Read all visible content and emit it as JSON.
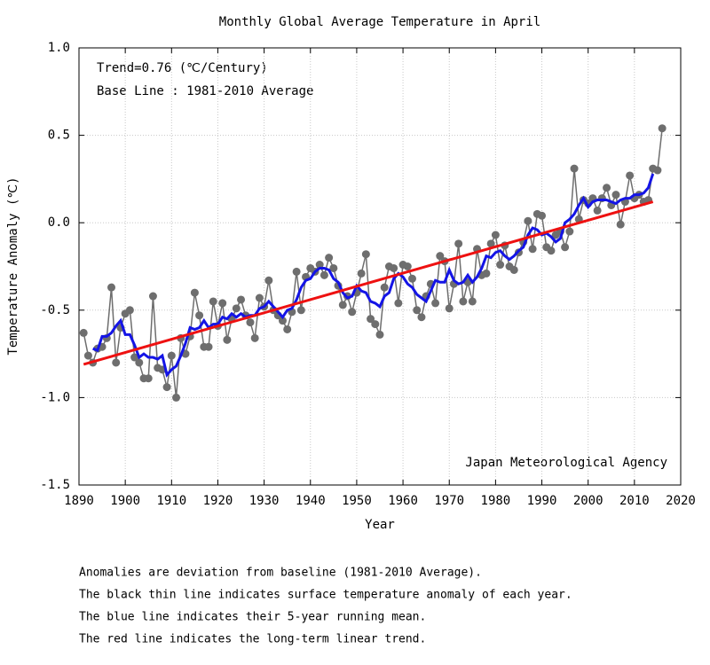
{
  "chart_data": {
    "type": "line",
    "title": "Monthly Global Average Temperature in April",
    "x_label": "Year",
    "y_label": "Temperature Anomaly (℃)",
    "annotations": [
      "Trend=0.76 (℃/Century)",
      "Base Line : 1981-2010 Average"
    ],
    "source": "Japan Meteorological Agency",
    "notes": [
      "Anomalies are deviation from baseline (1981-2010 Average).",
      "The black thin line indicates surface temperature anomaly of each year.",
      "The blue line indicates their 5-year running mean.",
      "The red line indicates the long-term linear trend."
    ],
    "xlim": [
      1890,
      2020
    ],
    "xticks": [
      1890,
      1900,
      1910,
      1920,
      1930,
      1940,
      1950,
      1960,
      1970,
      1980,
      1990,
      2000,
      2010,
      2020
    ],
    "ylim": [
      -1.5,
      1.0
    ],
    "yticks": [
      {
        "value": -1.5,
        "label": "-1.5"
      },
      {
        "value": -1.0,
        "label": "-1.0"
      },
      {
        "value": -0.5,
        "label": "-0.5"
      },
      {
        "value": 0,
        "label": "0.0"
      },
      {
        "value": 0.5,
        "label": "0.5"
      },
      {
        "value": 1.0,
        "label": "1.0"
      }
    ],
    "grid": true,
    "x": [
      1891,
      1892,
      1893,
      1894,
      1895,
      1896,
      1897,
      1898,
      1899,
      1900,
      1901,
      1902,
      1903,
      1904,
      1905,
      1906,
      1907,
      1908,
      1909,
      1910,
      1911,
      1912,
      1913,
      1914,
      1915,
      1916,
      1917,
      1918,
      1919,
      1920,
      1921,
      1922,
      1923,
      1924,
      1925,
      1926,
      1927,
      1928,
      1929,
      1930,
      1931,
      1932,
      1933,
      1934,
      1935,
      1936,
      1937,
      1938,
      1939,
      1940,
      1941,
      1942,
      1943,
      1944,
      1945,
      1946,
      1947,
      1948,
      1949,
      1950,
      1951,
      1952,
      1953,
      1954,
      1955,
      1956,
      1957,
      1958,
      1959,
      1960,
      1961,
      1962,
      1963,
      1964,
      1965,
      1966,
      1967,
      1968,
      1969,
      1970,
      1971,
      1972,
      1973,
      1974,
      1975,
      1976,
      1977,
      1978,
      1979,
      1980,
      1981,
      1982,
      1983,
      1984,
      1985,
      1986,
      1987,
      1988,
      1989,
      1990,
      1991,
      1992,
      1993,
      1994,
      1995,
      1996,
      1997,
      1998,
      1999,
      2000,
      2001,
      2002,
      2003,
      2004,
      2005,
      2006,
      2007,
      2008,
      2009,
      2010,
      2011,
      2012,
      2013,
      2014,
      2015,
      2016
    ],
    "series": [
      {
        "color": "#6e6e6e",
        "markers": true,
        "values": [
          -0.63,
          -0.76,
          -0.8,
          -0.72,
          -0.71,
          -0.66,
          -0.37,
          -0.8,
          -0.6,
          -0.52,
          -0.5,
          -0.77,
          -0.8,
          -0.89,
          -0.89,
          -0.42,
          -0.83,
          -0.84,
          -0.94,
          -0.76,
          -1.0,
          -0.66,
          -0.75,
          -0.65,
          -0.4,
          -0.53,
          -0.71,
          -0.71,
          -0.45,
          -0.59,
          -0.46,
          -0.67,
          -0.55,
          -0.49,
          -0.44,
          -0.53,
          -0.57,
          -0.66,
          -0.43,
          -0.48,
          -0.33,
          -0.5,
          -0.53,
          -0.56,
          -0.61,
          -0.51,
          -0.28,
          -0.5,
          -0.31,
          -0.26,
          -0.28,
          -0.24,
          -0.3,
          -0.2,
          -0.26,
          -0.36,
          -0.47,
          -0.42,
          -0.51,
          -0.4,
          -0.29,
          -0.18,
          -0.55,
          -0.58,
          -0.64,
          -0.37,
          -0.25,
          -0.26,
          -0.46,
          -0.24,
          -0.25,
          -0.32,
          -0.5,
          -0.54,
          -0.42,
          -0.35,
          -0.46,
          -0.19,
          -0.22,
          -0.49,
          -0.35,
          -0.12,
          -0.45,
          -0.34,
          -0.45,
          -0.15,
          -0.3,
          -0.29,
          -0.12,
          -0.07,
          -0.24,
          -0.13,
          -0.25,
          -0.27,
          -0.17,
          -0.11,
          0.01,
          -0.15,
          0.05,
          0.04,
          -0.14,
          -0.16,
          -0.07,
          -0.05,
          -0.14,
          -0.05,
          0.31,
          0.02,
          0.13,
          0.11,
          0.14,
          0.07,
          0.14,
          0.2,
          0.1,
          0.16,
          -0.01,
          0.12,
          0.27,
          0.14,
          0.16,
          0.12,
          0.13,
          0.31,
          0.3,
          0.54
        ]
      },
      {
        "color": "#1414e6",
        "markers": false,
        "values": [
          null,
          null,
          -0.72,
          -0.73,
          -0.65,
          -0.65,
          -0.63,
          -0.59,
          -0.56,
          -0.64,
          -0.64,
          -0.7,
          -0.77,
          -0.75,
          -0.77,
          -0.77,
          -0.78,
          -0.76,
          -0.87,
          -0.84,
          -0.82,
          -0.76,
          -0.69,
          -0.6,
          -0.61,
          -0.6,
          -0.56,
          -0.6,
          -0.58,
          -0.58,
          -0.54,
          -0.55,
          -0.52,
          -0.54,
          -0.52,
          -0.54,
          -0.53,
          -0.53,
          -0.49,
          -0.48,
          -0.45,
          -0.48,
          -0.51,
          -0.54,
          -0.5,
          -0.49,
          -0.44,
          -0.37,
          -0.33,
          -0.32,
          -0.28,
          -0.26,
          -0.26,
          -0.27,
          -0.32,
          -0.34,
          -0.4,
          -0.43,
          -0.42,
          -0.36,
          -0.39,
          -0.4,
          -0.45,
          -0.46,
          -0.48,
          -0.42,
          -0.4,
          -0.32,
          -0.29,
          -0.31,
          -0.35,
          -0.37,
          -0.41,
          -0.43,
          -0.45,
          -0.39,
          -0.33,
          -0.34,
          -0.34,
          -0.27,
          -0.33,
          -0.35,
          -0.34,
          -0.3,
          -0.34,
          -0.31,
          -0.26,
          -0.19,
          -0.2,
          -0.17,
          -0.16,
          -0.19,
          -0.21,
          -0.19,
          -0.16,
          -0.14,
          -0.07,
          -0.03,
          -0.04,
          -0.07,
          -0.06,
          -0.08,
          -0.11,
          -0.09,
          0.0,
          0.02,
          0.05,
          0.1,
          0.14,
          0.09,
          0.12,
          0.13,
          0.13,
          0.13,
          0.12,
          0.11,
          0.13,
          0.14,
          0.14,
          0.16,
          0.16,
          0.17,
          0.2,
          0.28,
          null,
          null
        ]
      }
    ],
    "trend": {
      "color": "#ee1111",
      "x": [
        1891,
        2014
      ],
      "values": [
        -0.81,
        0.12
      ]
    }
  }
}
